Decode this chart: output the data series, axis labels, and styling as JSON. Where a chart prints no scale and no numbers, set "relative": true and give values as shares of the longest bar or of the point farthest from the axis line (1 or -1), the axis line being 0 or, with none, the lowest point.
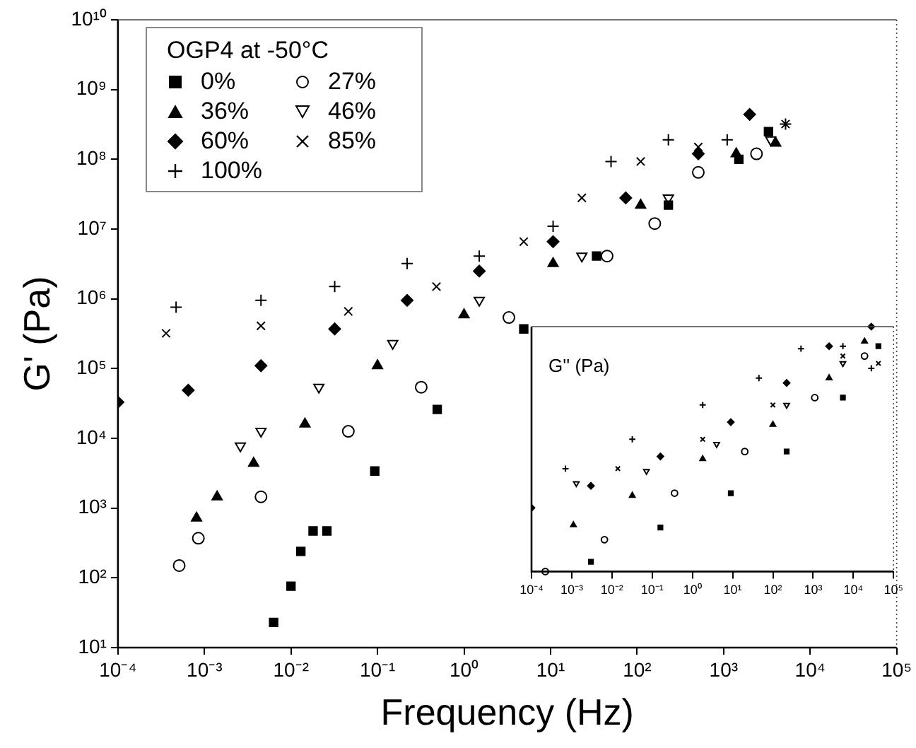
{
  "chart_data": [
    {
      "type": "scatter",
      "xlabel": "Frequency (Hz)",
      "ylabel": "G' (Pa)",
      "legend_title": "OGP4 at -50°C",
      "legend": "top left",
      "log": "xy",
      "xlim": [
        0.0001,
        100000
      ],
      "ylim": [
        10,
        10000000000
      ],
      "xticks": [
        {
          "value": 0.0001,
          "label": "10⁻⁴"
        },
        {
          "value": 0.001,
          "label": "10⁻³"
        },
        {
          "value": 0.01,
          "label": "10⁻²"
        },
        {
          "value": 0.1,
          "label": "10⁻¹"
        },
        {
          "value": 1,
          "label": "10⁰"
        },
        {
          "value": 10,
          "label": "10¹"
        },
        {
          "value": 100,
          "label": "10²"
        },
        {
          "value": 1000,
          "label": "10³"
        },
        {
          "value": 10000,
          "label": "10⁴"
        },
        {
          "value": 100000,
          "label": "10⁵"
        }
      ],
      "yticks": [
        {
          "value": 10,
          "label": "10¹"
        },
        {
          "value": 100,
          "label": "10²"
        },
        {
          "value": 1000,
          "label": "10³"
        },
        {
          "value": 10000,
          "label": "10⁴"
        },
        {
          "value": 100000,
          "label": "10⁵"
        },
        {
          "value": 1000000,
          "label": "10⁶"
        },
        {
          "value": 10000000,
          "label": "10⁷"
        },
        {
          "value": 100000000,
          "label": "10⁸"
        },
        {
          "value": 1000000000,
          "label": "10⁹"
        },
        {
          "value": 10000000000,
          "label": "10¹⁰"
        }
      ],
      "series": [
        {
          "name": "0%",
          "color": "#000000",
          "marker": "square",
          "x": [
            0.0063,
            0.01,
            0.013,
            0.018,
            0.026,
            0.093,
            0.49,
            4.9,
            34,
            230,
            1500,
            3300
          ],
          "values": [
            23,
            76,
            240,
            470,
            470,
            3400,
            26000,
            370000,
            4100000,
            22000000,
            100000000,
            250000000
          ]
        },
        {
          "name": "27%",
          "color": "#000000",
          "marker": "circle-open",
          "x": [
            0.00051,
            0.00085,
            0.0045,
            0.046,
            0.32,
            3.3,
            45,
            160,
            510,
            2400
          ],
          "values": [
            150,
            370,
            1450,
            12600,
            54000,
            540000,
            4100000,
            12000000,
            65000000,
            120000000
          ]
        },
        {
          "name": "36%",
          "color": "#000000",
          "marker": "triangle",
          "x": [
            0.00081,
            0.0014,
            0.0037,
            0.0145,
            0.1,
            1,
            10.7,
            110,
            1400,
            4000
          ],
          "values": [
            720,
            1450,
            4400,
            16000,
            110000,
            590000,
            3200000,
            22000000,
            120000000,
            170000000
          ]
        },
        {
          "name": "46%",
          "color": "#000000",
          "marker": "triangle-down-open",
          "x": [
            0.0026,
            0.0045,
            0.021,
            0.15,
            1.5,
            23,
            230,
            3500
          ],
          "values": [
            7800,
            12600,
            54000,
            230000,
            950000,
            4100000,
            28000000,
            190000000
          ]
        },
        {
          "name": "60%",
          "color": "#000000",
          "marker": "diamond",
          "x": [
            0.0001,
            0.00065,
            0.0045,
            0.032,
            0.22,
            1.5,
            10.7,
            74,
            510,
            2000
          ],
          "values": [
            33000,
            49000,
            110000,
            370000,
            950000,
            2500000,
            6600000,
            28000000,
            120000000,
            440000000
          ]
        },
        {
          "name": "85%",
          "color": "#000000",
          "marker": "x",
          "x": [
            0.00036,
            0.0045,
            0.046,
            0.48,
            4.9,
            23,
            110,
            510,
            5200
          ],
          "values": [
            320000,
            410000,
            660000,
            1500000,
            6600000,
            28000000,
            93000000,
            150000000,
            320000000
          ]
        },
        {
          "name": "100%",
          "color": "#000000",
          "marker": "plus",
          "x": [
            0.00047,
            0.0045,
            0.032,
            0.22,
            1.5,
            10.7,
            50,
            230,
            1100,
            5200
          ],
          "values": [
            760000,
            950000,
            1500000,
            3200000,
            4100000,
            11000000,
            93000000,
            190000000,
            190000000,
            320000000
          ]
        }
      ]
    },
    {
      "type": "scatter",
      "relative": true,
      "tick_labels": "x",
      "log": "x",
      "annotations": [
        "G'' (Pa)"
      ],
      "xlim": [
        0.0001,
        100000
      ],
      "xticks": [
        {
          "value": 0.0001,
          "label": "10⁻⁴"
        },
        {
          "value": 0.001,
          "label": "10⁻³"
        },
        {
          "value": 0.01,
          "label": "10⁻²"
        },
        {
          "value": 0.1,
          "label": "10⁻¹"
        },
        {
          "value": 1,
          "label": "10⁰"
        },
        {
          "value": 10,
          "label": "10¹"
        },
        {
          "value": 100,
          "label": "10²"
        },
        {
          "value": 1000,
          "label": "10³"
        },
        {
          "value": 10000,
          "label": "10⁴"
        },
        {
          "value": 100000,
          "label": "10⁵"
        }
      ],
      "series": [
        {
          "color": "#000000",
          "marker": "square",
          "x": [
            0.003,
            0.16,
            9,
            220,
            5500,
            42000
          ],
          "values": [
            0.04,
            0.18,
            0.32,
            0.49,
            0.71,
            0.92
          ]
        },
        {
          "color": "#000000",
          "marker": "circle-open",
          "x": [
            0.00022,
            0.0065,
            0.36,
            20,
            1100,
            19000
          ],
          "values": [
            0,
            0.13,
            0.32,
            0.49,
            0.71,
            0.88
          ]
        },
        {
          "color": "#000000",
          "marker": "triangle",
          "x": [
            0.0011,
            0.032,
            1.8,
            100,
            2500,
            19000
          ],
          "values": [
            0.19,
            0.31,
            0.46,
            0.6,
            0.79,
            0.94
          ]
        },
        {
          "color": "#000000",
          "marker": "triangle-down-open",
          "x": [
            0.0013,
            0.072,
            4,
            220,
            5500
          ],
          "values": [
            0.36,
            0.41,
            0.52,
            0.68,
            0.85
          ]
        },
        {
          "color": "#000000",
          "marker": "diamond",
          "x": [
            0.0001,
            0.003,
            0.16,
            9,
            220,
            2500,
            28000
          ],
          "values": [
            0.26,
            0.35,
            0.47,
            0.61,
            0.77,
            0.92,
            1
          ]
        },
        {
          "color": "#000000",
          "marker": "x",
          "x": [
            0.014,
            1.8,
            100,
            5500,
            42000
          ],
          "values": [
            0.42,
            0.54,
            0.68,
            0.88,
            0.85
          ]
        },
        {
          "color": "#000000",
          "marker": "plus",
          "x": [
            0.0007,
            0.032,
            1.8,
            45,
            500,
            5500,
            28000
          ],
          "values": [
            0.42,
            0.54,
            0.68,
            0.79,
            0.91,
            0.92,
            0.83
          ]
        }
      ]
    }
  ]
}
